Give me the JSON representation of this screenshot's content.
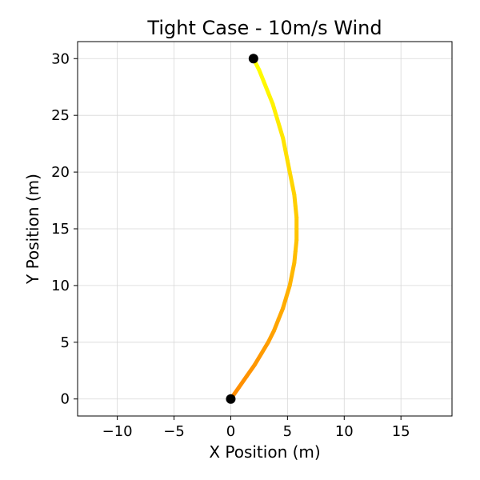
{
  "chart_data": {
    "type": "line",
    "title": "Tight Case - 10m/s Wind",
    "xlabel": "X Position (m)",
    "ylabel": "Y Position (m)",
    "xlim": [
      -13.5,
      19.5
    ],
    "ylim": [
      -1.5,
      31.5
    ],
    "x_ticks": [
      -10,
      -5,
      0,
      5,
      10,
      15
    ],
    "x_tick_labels": [
      "−10",
      "−5",
      "0",
      "5",
      "10",
      "15"
    ],
    "y_ticks": [
      0,
      5,
      10,
      15,
      20,
      25,
      30
    ],
    "y_tick_labels": [
      "0",
      "5",
      "10",
      "15",
      "20",
      "25",
      "30"
    ],
    "grid": true,
    "series": [
      {
        "points": [
          {
            "x": 0.0,
            "y": 0.0
          },
          {
            "x": 0.7,
            "y": 1.0
          },
          {
            "x": 1.4,
            "y": 2.0
          },
          {
            "x": 2.1,
            "y": 3.0
          },
          {
            "x": 2.7,
            "y": 4.0
          },
          {
            "x": 3.3,
            "y": 5.0
          },
          {
            "x": 3.8,
            "y": 6.0
          },
          {
            "x": 4.2,
            "y": 7.0
          },
          {
            "x": 4.6,
            "y": 8.0
          },
          {
            "x": 4.9,
            "y": 9.0
          },
          {
            "x": 5.2,
            "y": 10.0
          },
          {
            "x": 5.4,
            "y": 11.0
          },
          {
            "x": 5.6,
            "y": 12.0
          },
          {
            "x": 5.7,
            "y": 13.0
          },
          {
            "x": 5.8,
            "y": 14.0
          },
          {
            "x": 5.8,
            "y": 15.0
          },
          {
            "x": 5.8,
            "y": 16.0
          },
          {
            "x": 5.7,
            "y": 17.0
          },
          {
            "x": 5.6,
            "y": 18.0
          },
          {
            "x": 5.4,
            "y": 19.0
          },
          {
            "x": 5.2,
            "y": 20.0
          },
          {
            "x": 5.0,
            "y": 21.0
          },
          {
            "x": 4.8,
            "y": 22.0
          },
          {
            "x": 4.6,
            "y": 23.0
          },
          {
            "x": 4.3,
            "y": 24.0
          },
          {
            "x": 4.0,
            "y": 25.0
          },
          {
            "x": 3.7,
            "y": 26.0
          },
          {
            "x": 3.3,
            "y": 27.0
          },
          {
            "x": 2.9,
            "y": 28.0
          },
          {
            "x": 2.5,
            "y": 29.0
          },
          {
            "x": 2.0,
            "y": 30.0
          }
        ],
        "color_start": "#ff8c00",
        "color_end": "#ffff00",
        "markers": [
          {
            "x": 0.0,
            "y": 0.0,
            "color": "#000000"
          },
          {
            "x": 2.0,
            "y": 30.0,
            "color": "#000000"
          }
        ]
      }
    ]
  }
}
